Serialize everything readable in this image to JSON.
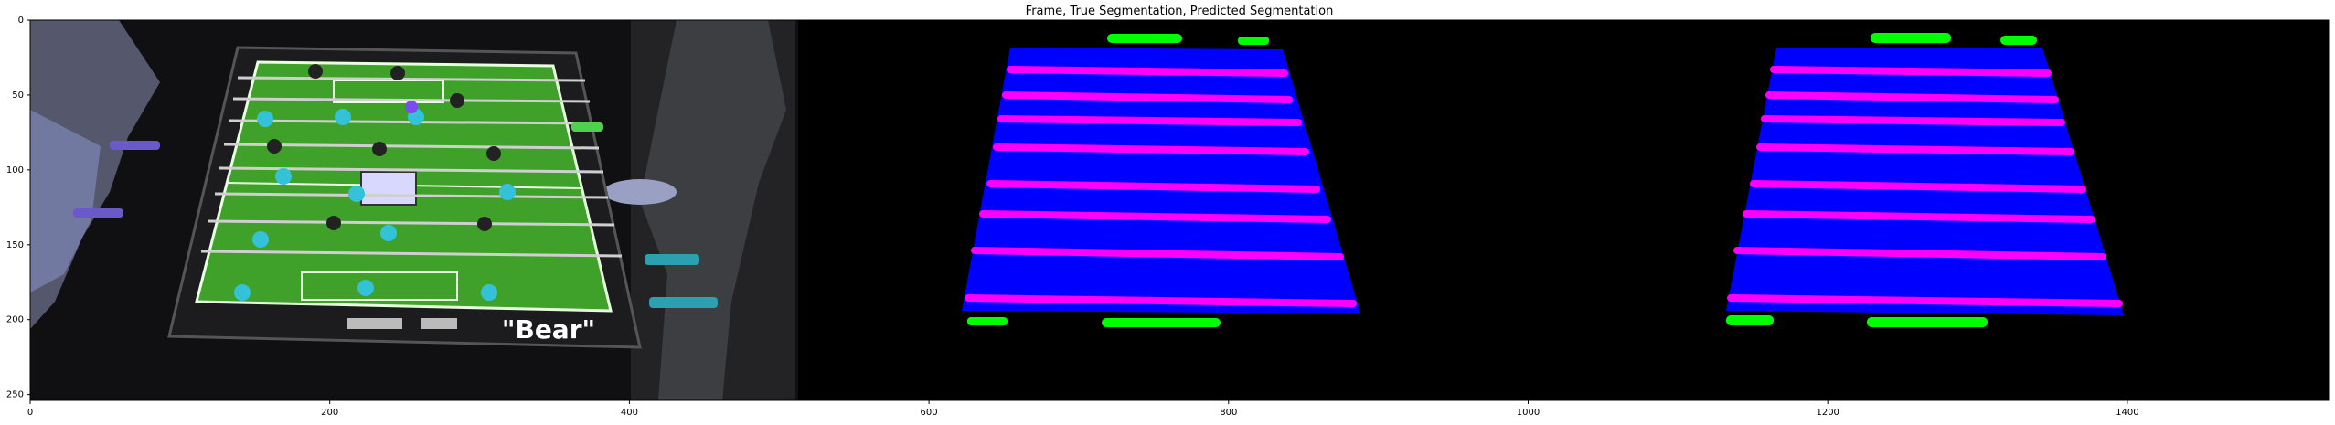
{
  "figure": {
    "title": "Frame, True Segmentation, Predicted Segmentation",
    "table_brand_text": "\"Bear\"",
    "x_ticks": [
      "0",
      "200",
      "400",
      "600",
      "800",
      "1000",
      "1200",
      "1400"
    ],
    "y_ticks": [
      "0",
      "50",
      "100",
      "150",
      "200",
      "250"
    ],
    "colors": {
      "field": "#0000ff",
      "rods": "#ff00ff",
      "players": "#00ff00",
      "background": "#000000",
      "photo_green": "#3fa12a",
      "photo_cyan": "#34c2d8"
    }
  }
}
